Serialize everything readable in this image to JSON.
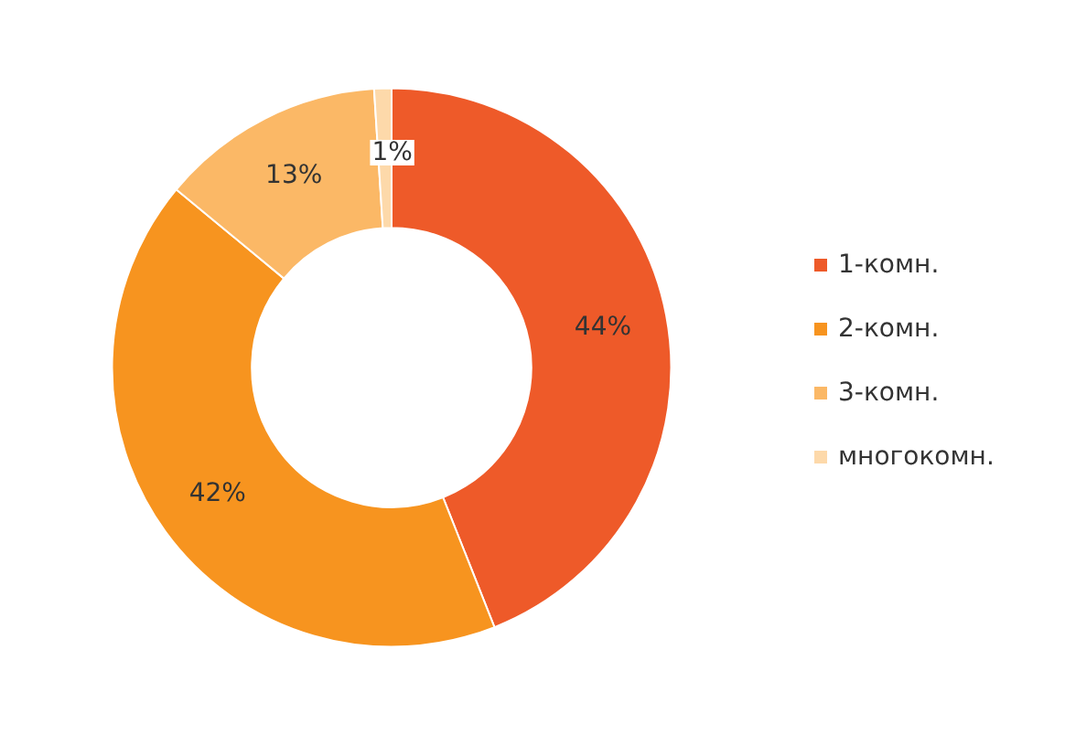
{
  "chart_data": {
    "type": "donut",
    "categories": [
      "1-комн.",
      "2-комн.",
      "3-комн.",
      "многокомн."
    ],
    "values": [
      44,
      42,
      13,
      1
    ],
    "colors": [
      "#ee5a29",
      "#f7941f",
      "#fbb866",
      "#fdd9aa"
    ],
    "value_labels": [
      "44%",
      "42%",
      "13%",
      "1%"
    ],
    "legend": "right"
  }
}
